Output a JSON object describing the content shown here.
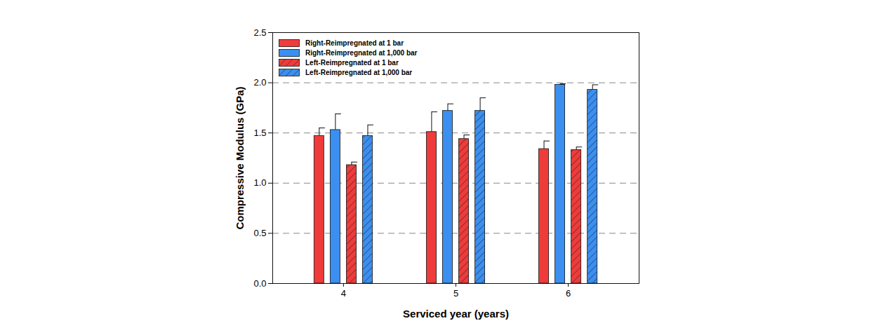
{
  "chart_data": {
    "type": "bar",
    "x_label": "Serviced year (years)",
    "y_label": "Compressive Modulus (GPa)",
    "categories": [
      "4",
      "5",
      "6"
    ],
    "series": [
      {
        "name": "Right-Reimpregnated at 1 bar",
        "color": "#f03b3b",
        "values": [
          1.47,
          1.51,
          1.34
        ],
        "errors": [
          0.08,
          0.2,
          0.08
        ]
      },
      {
        "name": "Right-Reimpregnated at 1,000 bar",
        "color": "#3b8ff0",
        "values": [
          1.53,
          1.72,
          1.98
        ],
        "errors": [
          0.16,
          0.07,
          0.01
        ]
      },
      {
        "name": "Left-Reimpregnated at 1 bar",
        "color": "#f03b3b",
        "marker": "hatch",
        "values": [
          1.18,
          1.44,
          1.33
        ],
        "errors": [
          0.03,
          0.04,
          0.03
        ]
      },
      {
        "name": "Left-Reimpregnated at 1,000 bar",
        "color": "#3b8ff0",
        "marker": "hatch",
        "values": [
          1.47,
          1.72,
          1.93
        ],
        "errors": [
          0.11,
          0.13,
          0.05
        ]
      }
    ],
    "ylim": [
      0,
      2.5
    ],
    "yticks": [
      {
        "value": 0,
        "label": "0.0"
      },
      {
        "value": 0.5,
        "label": "0.5"
      },
      {
        "value": 1,
        "label": "1.0"
      },
      {
        "value": 1.5,
        "label": "1.5"
      },
      {
        "value": 2,
        "label": "2.0"
      },
      {
        "value": 2.5,
        "label": "2.5"
      }
    ],
    "grid": true,
    "legend": "upper left"
  }
}
